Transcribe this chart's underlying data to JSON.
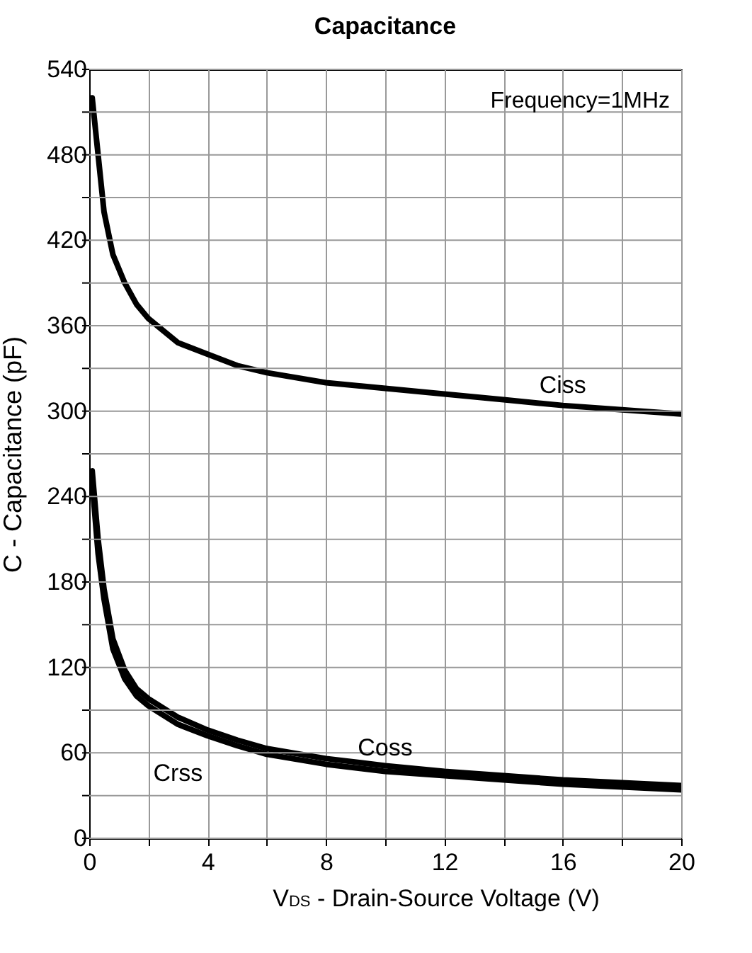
{
  "chart_data": {
    "type": "line",
    "title": "Capacitance",
    "xlabel": "V$_{DS}$ - Drain-Source Voltage (V)",
    "ylabel": "C - Capacitance (pF)",
    "annotations": [
      "Frequency=1MHz"
    ],
    "x": [
      0.1,
      0.3,
      0.5,
      0.8,
      1.2,
      1.6,
      2,
      3,
      4,
      5,
      6,
      8,
      10,
      12,
      14,
      16,
      18,
      20
    ],
    "series": [
      {
        "name": "Ciss",
        "color": "#000000",
        "values": [
          520,
          480,
          440,
          410,
          390,
          375,
          365,
          348,
          340,
          332,
          327,
          320,
          316,
          312,
          308,
          304,
          301,
          298
        ]
      },
      {
        "name": "Coss",
        "color": "#000000",
        "values": [
          258,
          210,
          175,
          140,
          118,
          105,
          98,
          85,
          76,
          69,
          63,
          56,
          51,
          47,
          44,
          41,
          39,
          37
        ]
      },
      {
        "name": "Crss",
        "color": "#000000",
        "values": [
          250,
          200,
          168,
          133,
          112,
          100,
          93,
          80,
          72,
          65,
          59,
          52,
          47,
          44,
          41,
          38,
          36,
          34
        ]
      }
    ],
    "xlim": [
      0,
      20
    ],
    "xticks": [
      0,
      {
        "value": 2,
        "label": null
      },
      4,
      {
        "value": 6,
        "label": null
      },
      8,
      {
        "value": 10,
        "label": null
      },
      12,
      {
        "value": 14,
        "label": null
      },
      16,
      {
        "value": 18,
        "label": null
      },
      20
    ],
    "ylim": [
      0,
      540
    ],
    "yticks": [
      0,
      {
        "value": 30,
        "label": null
      },
      60,
      {
        "value": 90,
        "label": null
      },
      120,
      {
        "value": 150,
        "label": null
      },
      180,
      {
        "value": 210,
        "label": null
      },
      240,
      {
        "value": 270,
        "label": null
      },
      300,
      {
        "value": 330,
        "label": null
      },
      360,
      {
        "value": 390,
        "label": null
      },
      420,
      {
        "value": 450,
        "label": null
      },
      480,
      {
        "value": 510,
        "label": null
      },
      540
    ],
    "grid": true,
    "legend": false,
    "marker": "none",
    "line_style": "solid"
  }
}
